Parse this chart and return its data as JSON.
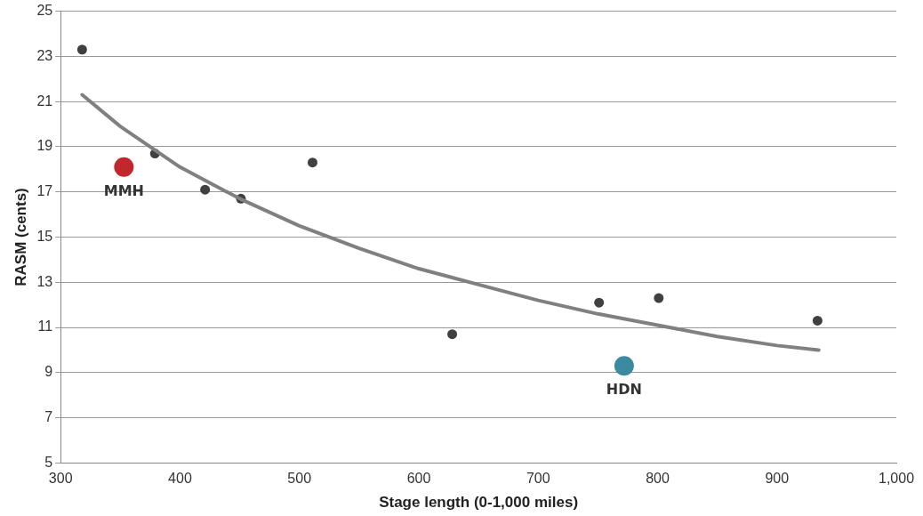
{
  "chart_data": {
    "type": "scatter",
    "xlabel": "Stage length (0-1,000 miles)",
    "ylabel": "RASM (cents)",
    "xlim": [
      300,
      1000
    ],
    "xticks": [
      300,
      400,
      500,
      600,
      700,
      800,
      900,
      {
        "value": 1000,
        "label": "1,000"
      }
    ],
    "ylim": [
      5,
      25
    ],
    "yticks": [
      5,
      7,
      9,
      11,
      13,
      15,
      17,
      19,
      21,
      23,
      25
    ],
    "grid": "y",
    "legend": false,
    "marker": "circle",
    "series": [
      {
        "type": "line",
        "color": "#808080",
        "marker": "none",
        "x": [
          318,
          350,
          400,
          450,
          500,
          550,
          600,
          650,
          700,
          750,
          800,
          850,
          900,
          935
        ],
        "values": [
          21.3,
          19.9,
          18.1,
          16.7,
          15.5,
          14.5,
          13.6,
          12.9,
          12.2,
          11.6,
          11.1,
          10.6,
          10.2,
          10.0
        ]
      },
      {
        "color": "#404040",
        "x": [
          318,
          379,
          421,
          451,
          511,
          628,
          751,
          801,
          934
        ],
        "values": [
          23.3,
          18.7,
          17.1,
          16.7,
          18.3,
          10.7,
          12.1,
          12.3,
          11.3
        ]
      },
      {
        "name": "MMH",
        "color": "#c0282d",
        "x": [
          353
        ],
        "values": [
          18.1
        ]
      },
      {
        "name": "HDN",
        "color": "#3b8aa0",
        "x": [
          772
        ],
        "values": [
          9.3
        ]
      }
    ]
  }
}
